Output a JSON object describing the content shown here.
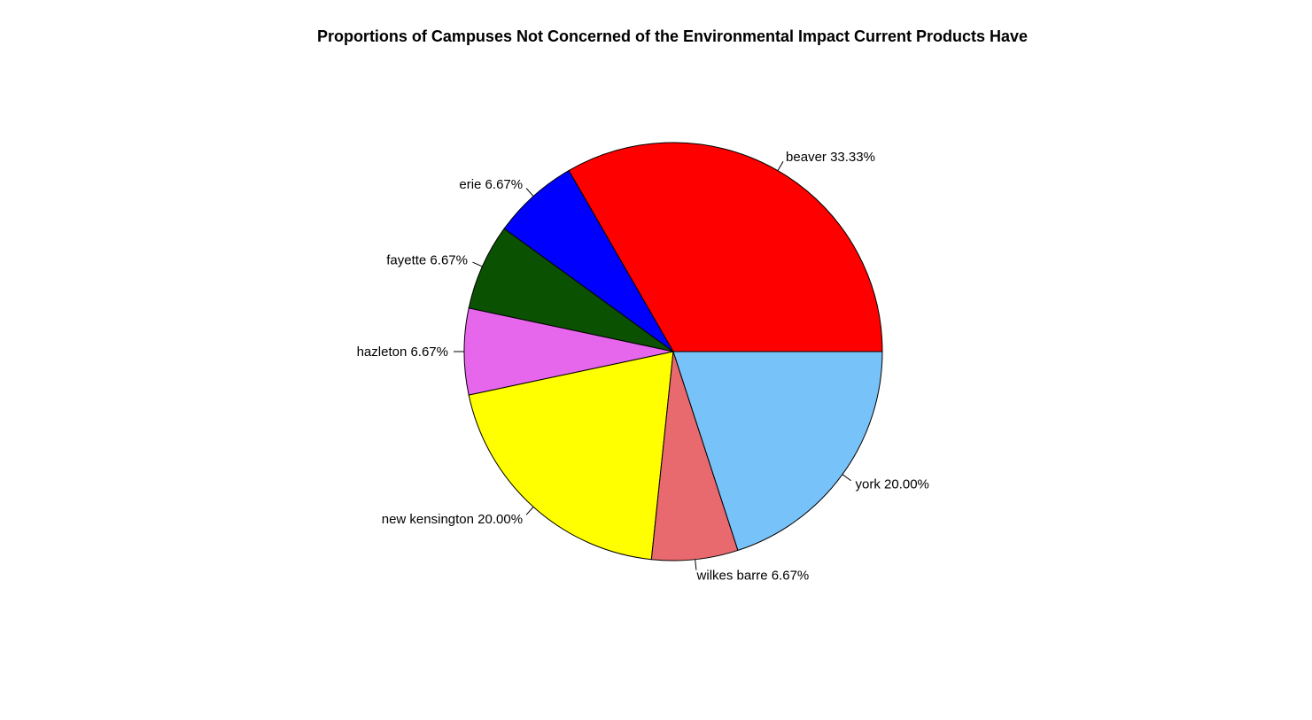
{
  "chart_data": {
    "type": "pie",
    "title": "Proportions of Campuses Not Concerned of the Environmental Impact Current Products Have",
    "slices": [
      {
        "label": "beaver 33.33%",
        "value": 33.33,
        "color": "#FF0000"
      },
      {
        "label": "erie 6.67%",
        "value": 6.67,
        "color": "#0000FF"
      },
      {
        "label": "fayette 6.67%",
        "value": 6.67,
        "color": "#0B5102"
      },
      {
        "label": "hazleton 6.67%",
        "value": 6.67,
        "color": "#E666EC"
      },
      {
        "label": "new kensington 20.00%",
        "value": 20.0,
        "color": "#FFFF00"
      },
      {
        "label": "wilkes barre 6.67%",
        "value": 6.67,
        "color": "#E96A6E"
      },
      {
        "label": "york 20.00%",
        "value": 20.0,
        "color": "#77C2F9"
      }
    ],
    "start_angle_deg": 0,
    "direction": "counterclockwise",
    "legend": "none"
  }
}
